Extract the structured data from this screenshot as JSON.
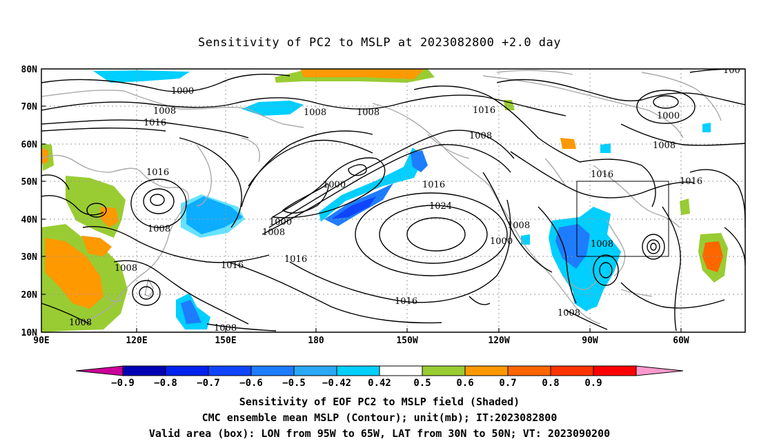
{
  "title": "Sensitivity of PC2 to MSLP at 2023082800 +2.0 day",
  "map": {
    "lat_ticks": [
      "80N",
      "70N",
      "60N",
      "50N",
      "40N",
      "30N",
      "20N",
      "10N"
    ],
    "lon_ticks": [
      "90E",
      "120E",
      "150E",
      "180",
      "150W",
      "120W",
      "90W",
      "60W"
    ],
    "grid": true,
    "contour_color": "#000000",
    "coast_color": "#a9a9a9",
    "contour_labels": [
      {
        "text": "1000"
      },
      {
        "text": "1008"
      },
      {
        "text": "1016"
      },
      {
        "text": "1008"
      },
      {
        "text": "1008"
      },
      {
        "text": "1016"
      },
      {
        "text": "1000"
      },
      {
        "text": "1008"
      },
      {
        "text": "1016"
      },
      {
        "text": "1008"
      },
      {
        "text": "1000"
      },
      {
        "text": "1000"
      },
      {
        "text": "1008"
      },
      {
        "text": "1016"
      },
      {
        "text": "1016"
      },
      {
        "text": "1024"
      },
      {
        "text": "1016"
      },
      {
        "text": "1016"
      },
      {
        "text": "1008"
      },
      {
        "text": "1008"
      },
      {
        "text": "1008"
      },
      {
        "text": "1008"
      },
      {
        "text": "1016"
      },
      {
        "text": "1008"
      },
      {
        "text": "1000"
      },
      {
        "text": "1016"
      },
      {
        "text": "100"
      }
    ],
    "valid_box": {
      "lon": [
        "95W",
        "65W"
      ],
      "lat": [
        "30N",
        "50N"
      ]
    }
  },
  "colorbar": {
    "labels": [
      "-0.9",
      "-0.8",
      "-0.7",
      "-0.6",
      "-0.5",
      "-0.42",
      "0.42",
      "0.5",
      "0.6",
      "0.7",
      "0.8",
      "0.9"
    ],
    "colors": [
      "#cc0099",
      "#0000b4",
      "#0022ee",
      "#0f45ff",
      "#1e7cff",
      "#2aa8f5",
      "#00cfff",
      "#ffffff",
      "#99cc33",
      "#ff9900",
      "#ff6600",
      "#ff3300",
      "#ff0000",
      "#ff99cc"
    ]
  },
  "caption": [
    "Sensitivity of EOF PC2 to MSLP field (Shaded)",
    "CMC ensemble mean MSLP (Contour); unit(mb); IT:2023082800",
    "Valid area (box): LON from 95W to 65W, LAT from 30N to 50N; VT: 2023090200"
  ]
}
